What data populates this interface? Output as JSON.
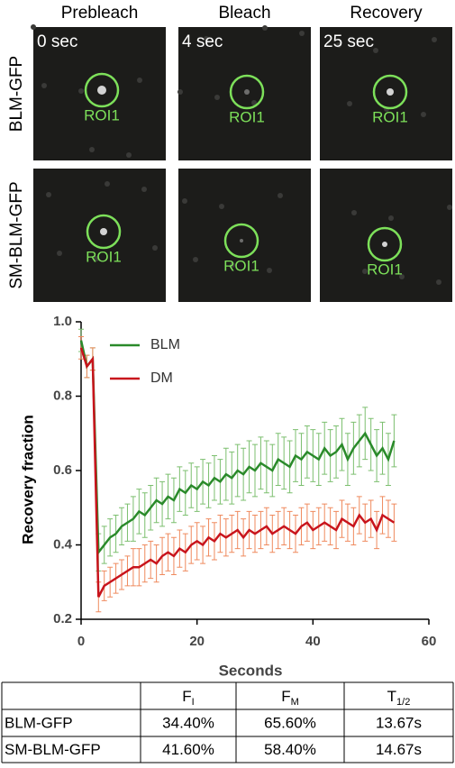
{
  "panels": {
    "columns": [
      "Prebleach",
      "Bleach",
      "Recovery"
    ],
    "times": [
      "0 sec",
      "4 sec",
      "25 sec"
    ],
    "rows": [
      "BLM-GFP",
      "SM-BLM-GFP"
    ],
    "roi_label": "ROI1"
  },
  "chart_data": {
    "type": "line",
    "y_label": "Recovery fraction",
    "x_label": "Seconds",
    "x": [
      0,
      1,
      2,
      3,
      4,
      5,
      6,
      7,
      8,
      9,
      10,
      11,
      12,
      13,
      14,
      15,
      16,
      17,
      18,
      19,
      20,
      21,
      22,
      23,
      24,
      25,
      26,
      27,
      28,
      29,
      30,
      31,
      32,
      33,
      34,
      35,
      36,
      37,
      38,
      39,
      40,
      41,
      42,
      43,
      44,
      45,
      46,
      47,
      48,
      49,
      50,
      51,
      52,
      53,
      54
    ],
    "series": [
      {
        "name": "BLM",
        "color": "#2a8a2a",
        "error_color": "#7cbf6f",
        "values": [
          0.95,
          0.88,
          0.9,
          0.38,
          0.4,
          0.42,
          0.43,
          0.45,
          0.46,
          0.47,
          0.49,
          0.48,
          0.5,
          0.52,
          0.51,
          0.53,
          0.52,
          0.55,
          0.54,
          0.56,
          0.55,
          0.57,
          0.56,
          0.58,
          0.57,
          0.59,
          0.58,
          0.6,
          0.59,
          0.61,
          0.6,
          0.62,
          0.61,
          0.6,
          0.63,
          0.62,
          0.61,
          0.64,
          0.63,
          0.65,
          0.64,
          0.63,
          0.66,
          0.64,
          0.65,
          0.67,
          0.63,
          0.66,
          0.68,
          0.7,
          0.67,
          0.64,
          0.66,
          0.63,
          0.68
        ],
        "errors": [
          0.03,
          0.03,
          0.03,
          0.05,
          0.05,
          0.05,
          0.05,
          0.05,
          0.05,
          0.06,
          0.06,
          0.06,
          0.06,
          0.06,
          0.06,
          0.06,
          0.06,
          0.06,
          0.06,
          0.06,
          0.06,
          0.06,
          0.06,
          0.06,
          0.06,
          0.07,
          0.07,
          0.07,
          0.07,
          0.07,
          0.07,
          0.07,
          0.07,
          0.07,
          0.07,
          0.07,
          0.07,
          0.07,
          0.07,
          0.07,
          0.07,
          0.07,
          0.07,
          0.07,
          0.07,
          0.07,
          0.07,
          0.07,
          0.07,
          0.07,
          0.07,
          0.07,
          0.07,
          0.07,
          0.07
        ]
      },
      {
        "name": "DM",
        "color": "#c8141c",
        "error_color": "#ef8a5e",
        "values": [
          0.93,
          0.88,
          0.9,
          0.26,
          0.29,
          0.3,
          0.31,
          0.32,
          0.33,
          0.34,
          0.34,
          0.35,
          0.36,
          0.35,
          0.37,
          0.38,
          0.37,
          0.39,
          0.38,
          0.4,
          0.41,
          0.4,
          0.42,
          0.41,
          0.43,
          0.42,
          0.43,
          0.44,
          0.42,
          0.44,
          0.43,
          0.44,
          0.45,
          0.43,
          0.44,
          0.45,
          0.44,
          0.43,
          0.45,
          0.46,
          0.44,
          0.45,
          0.46,
          0.45,
          0.44,
          0.47,
          0.46,
          0.45,
          0.48,
          0.46,
          0.47,
          0.44,
          0.48,
          0.47,
          0.46
        ],
        "errors": [
          0.03,
          0.03,
          0.03,
          0.04,
          0.04,
          0.04,
          0.04,
          0.04,
          0.04,
          0.05,
          0.05,
          0.05,
          0.05,
          0.05,
          0.05,
          0.05,
          0.05,
          0.05,
          0.05,
          0.05,
          0.05,
          0.05,
          0.05,
          0.05,
          0.05,
          0.05,
          0.05,
          0.05,
          0.05,
          0.05,
          0.05,
          0.05,
          0.05,
          0.05,
          0.05,
          0.05,
          0.05,
          0.05,
          0.05,
          0.05,
          0.05,
          0.05,
          0.05,
          0.05,
          0.05,
          0.05,
          0.05,
          0.05,
          0.05,
          0.05,
          0.05,
          0.05,
          0.05,
          0.05,
          0.05
        ]
      }
    ],
    "xlim": [
      0,
      60
    ],
    "xticks": [
      0,
      20,
      40,
      60
    ],
    "ylim": [
      0.2,
      1
    ],
    "yticks": [
      0.2,
      0.4,
      0.6,
      0.8,
      {
        "value": 1,
        "label": "1.0"
      }
    ]
  },
  "table": {
    "header": [
      {
        "text": "F",
        "sub": "I"
      },
      {
        "text": "F",
        "sub": "M"
      },
      {
        "text": "T",
        "sub": "1/2"
      }
    ],
    "rows": [
      [
        "BLM-GFP",
        "34.40%",
        "65.60%",
        "13.67s"
      ],
      [
        "SM-BLM-GFP",
        "41.60%",
        "58.40%",
        "14.67s"
      ]
    ]
  }
}
